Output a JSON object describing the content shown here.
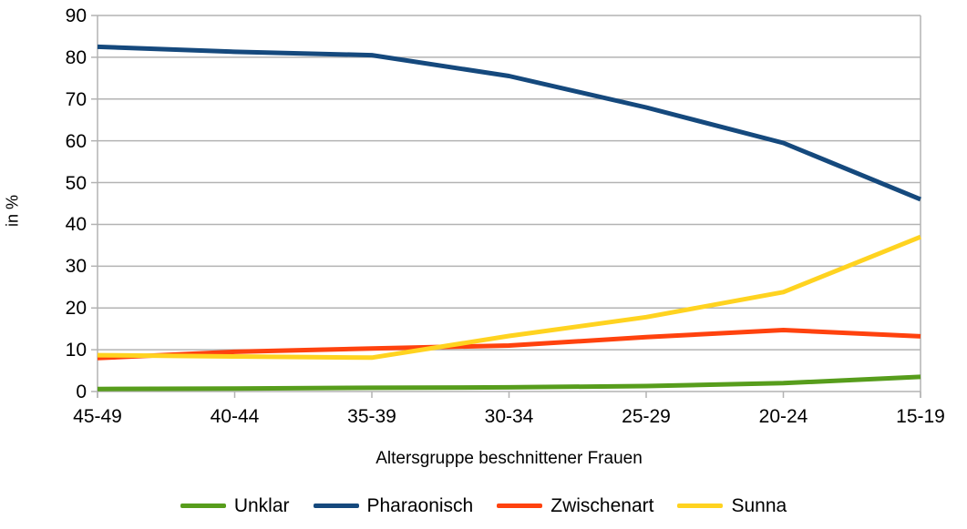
{
  "chart_data": {
    "type": "line",
    "title": "",
    "xlabel": "Altersgruppe beschnittener Frauen",
    "ylabel": "in %",
    "categories": [
      "45-49",
      "40-44",
      "35-39",
      "30-34",
      "25-29",
      "20-24",
      "15-19"
    ],
    "series": [
      {
        "name": "Unklar",
        "color": "#579D1C",
        "values": [
          0.6,
          0.7,
          0.9,
          1.0,
          1.3,
          2.0,
          3.5
        ]
      },
      {
        "name": "Pharaonisch",
        "color": "#15497D",
        "values": [
          82.5,
          81.3,
          80.5,
          75.5,
          68.0,
          59.5,
          46.0
        ]
      },
      {
        "name": "Zwischenart",
        "color": "#FF420E",
        "values": [
          8.0,
          9.5,
          10.3,
          11.0,
          13.0,
          14.7,
          13.2
        ]
      },
      {
        "name": "Sunna",
        "color": "#FFD320",
        "values": [
          8.7,
          8.4,
          8.1,
          13.3,
          17.8,
          23.8,
          37.0
        ]
      }
    ],
    "ylim": [
      0,
      90
    ],
    "ytick_step": 10,
    "grid": true,
    "grid_color": "#b3b3b3",
    "legend_position": "bottom"
  }
}
